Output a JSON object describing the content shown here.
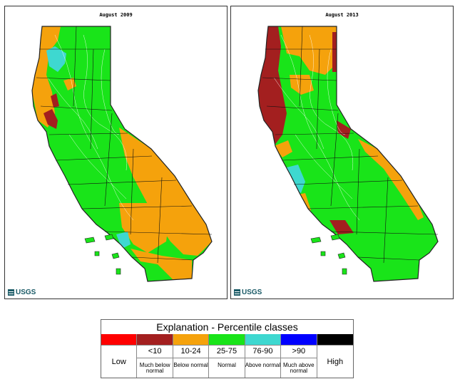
{
  "maps": [
    {
      "title": "August 2009",
      "logo_text": "USGS"
    },
    {
      "title": "August 2013",
      "logo_text": "USGS"
    }
  ],
  "colors": {
    "much_below": "#a31f1f",
    "below": "#f5a20c",
    "normal": "#19e419",
    "above": "#3ed8d0",
    "much_above": "#0000ff",
    "low": "#ff0000",
    "high": "#000000"
  },
  "legend": {
    "title": "Explanation - Percentile classes",
    "classes": [
      {
        "range": "",
        "label": "Low",
        "color": "#ff0000"
      },
      {
        "range": "<10",
        "label": "Much below normal",
        "color": "#a31f1f"
      },
      {
        "range": "10-24",
        "label": "Below normal",
        "color": "#f5a20c"
      },
      {
        "range": "25-75",
        "label": "Normal",
        "color": "#19e419"
      },
      {
        "range": "76-90",
        "label": "Above normal",
        "color": "#3ed8d0"
      },
      {
        "range": ">90",
        "label": "Much above normal",
        "color": "#0000ff"
      },
      {
        "range": "",
        "label": "High",
        "color": "#000000"
      }
    ]
  }
}
